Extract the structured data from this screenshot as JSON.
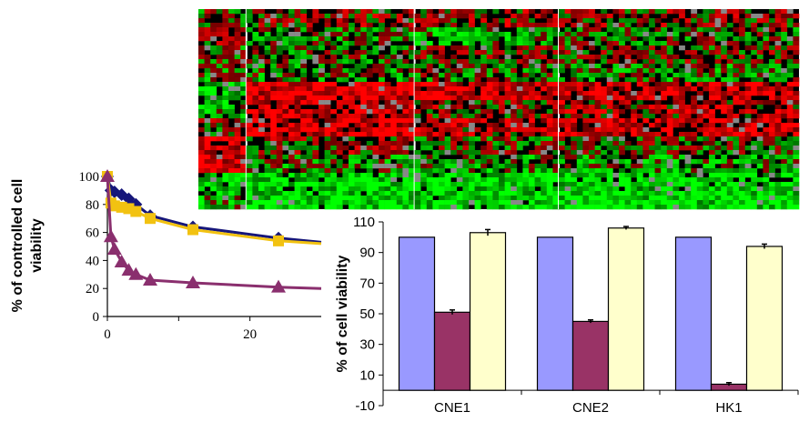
{
  "colors": {
    "series_blue": "#16167a",
    "series_yellow": "#f2c211",
    "series_purple": "#8a2f6e",
    "bar_blue": "#9999ff",
    "bar_purple": "#993366",
    "bar_yellow": "#ffffcc",
    "heat_red": "#ff0000",
    "heat_green": "#00ff00",
    "heat_black": "#000000"
  },
  "chart_data": [
    {
      "type": "line",
      "title": "",
      "xlabel": "",
      "ylabel": "% of controlled cell viability",
      "ylabel_lines": [
        "% of controlled cell",
        "viability"
      ],
      "xlim": [
        0,
        30
      ],
      "ylim": [
        0,
        100
      ],
      "xticks": [
        "0",
        "20"
      ],
      "yticks": [
        "0",
        "20",
        "40",
        "60",
        "80",
        "100"
      ],
      "grid": false,
      "series": [
        {
          "marker": "diamond",
          "color": "#16167a",
          "x": [
            0,
            0.5,
            1,
            2,
            3,
            4,
            6,
            12,
            24,
            30
          ],
          "y": [
            100,
            90,
            89,
            87,
            84,
            80,
            72,
            64,
            56,
            53
          ]
        },
        {
          "marker": "square",
          "color": "#f2c211",
          "x": [
            0,
            0.5,
            1,
            2,
            3,
            4,
            6,
            12,
            24,
            30
          ],
          "y": [
            100,
            81,
            79,
            78,
            77,
            75,
            70,
            62,
            54,
            52
          ]
        },
        {
          "marker": "triangle",
          "color": "#8a2f6e",
          "x": [
            0,
            0.5,
            1,
            2,
            3,
            4,
            6,
            12,
            24,
            30
          ],
          "y": [
            100,
            57,
            48,
            39,
            33,
            30,
            26,
            24,
            21,
            20
          ]
        }
      ]
    },
    {
      "type": "bar",
      "title": "",
      "xlabel": "",
      "ylabel": "% of cell viability",
      "categories": [
        "CNE1",
        "CNE2",
        "HK1"
      ],
      "ylim": [
        -10,
        110
      ],
      "yticks": [
        "-10",
        "10",
        "30",
        "50",
        "70",
        "90",
        "110"
      ],
      "grid": false,
      "series": [
        {
          "color": "#9999ff",
          "values": [
            100,
            100,
            100
          ],
          "errors": [
            0,
            0,
            0
          ]
        },
        {
          "color": "#993366",
          "values": [
            51,
            45,
            4
          ],
          "errors": [
            1.5,
            1,
            1
          ]
        },
        {
          "color": "#ffffcc",
          "values": [
            103,
            106,
            94
          ],
          "errors": [
            2,
            1,
            1.5
          ]
        }
      ]
    },
    {
      "type": "heatmap",
      "title": "",
      "color_scale": [
        "#00ff00",
        "#000000",
        "#ff0000"
      ],
      "column_blocks": [
        8,
        28,
        24,
        40
      ],
      "band_count": 11
    }
  ]
}
